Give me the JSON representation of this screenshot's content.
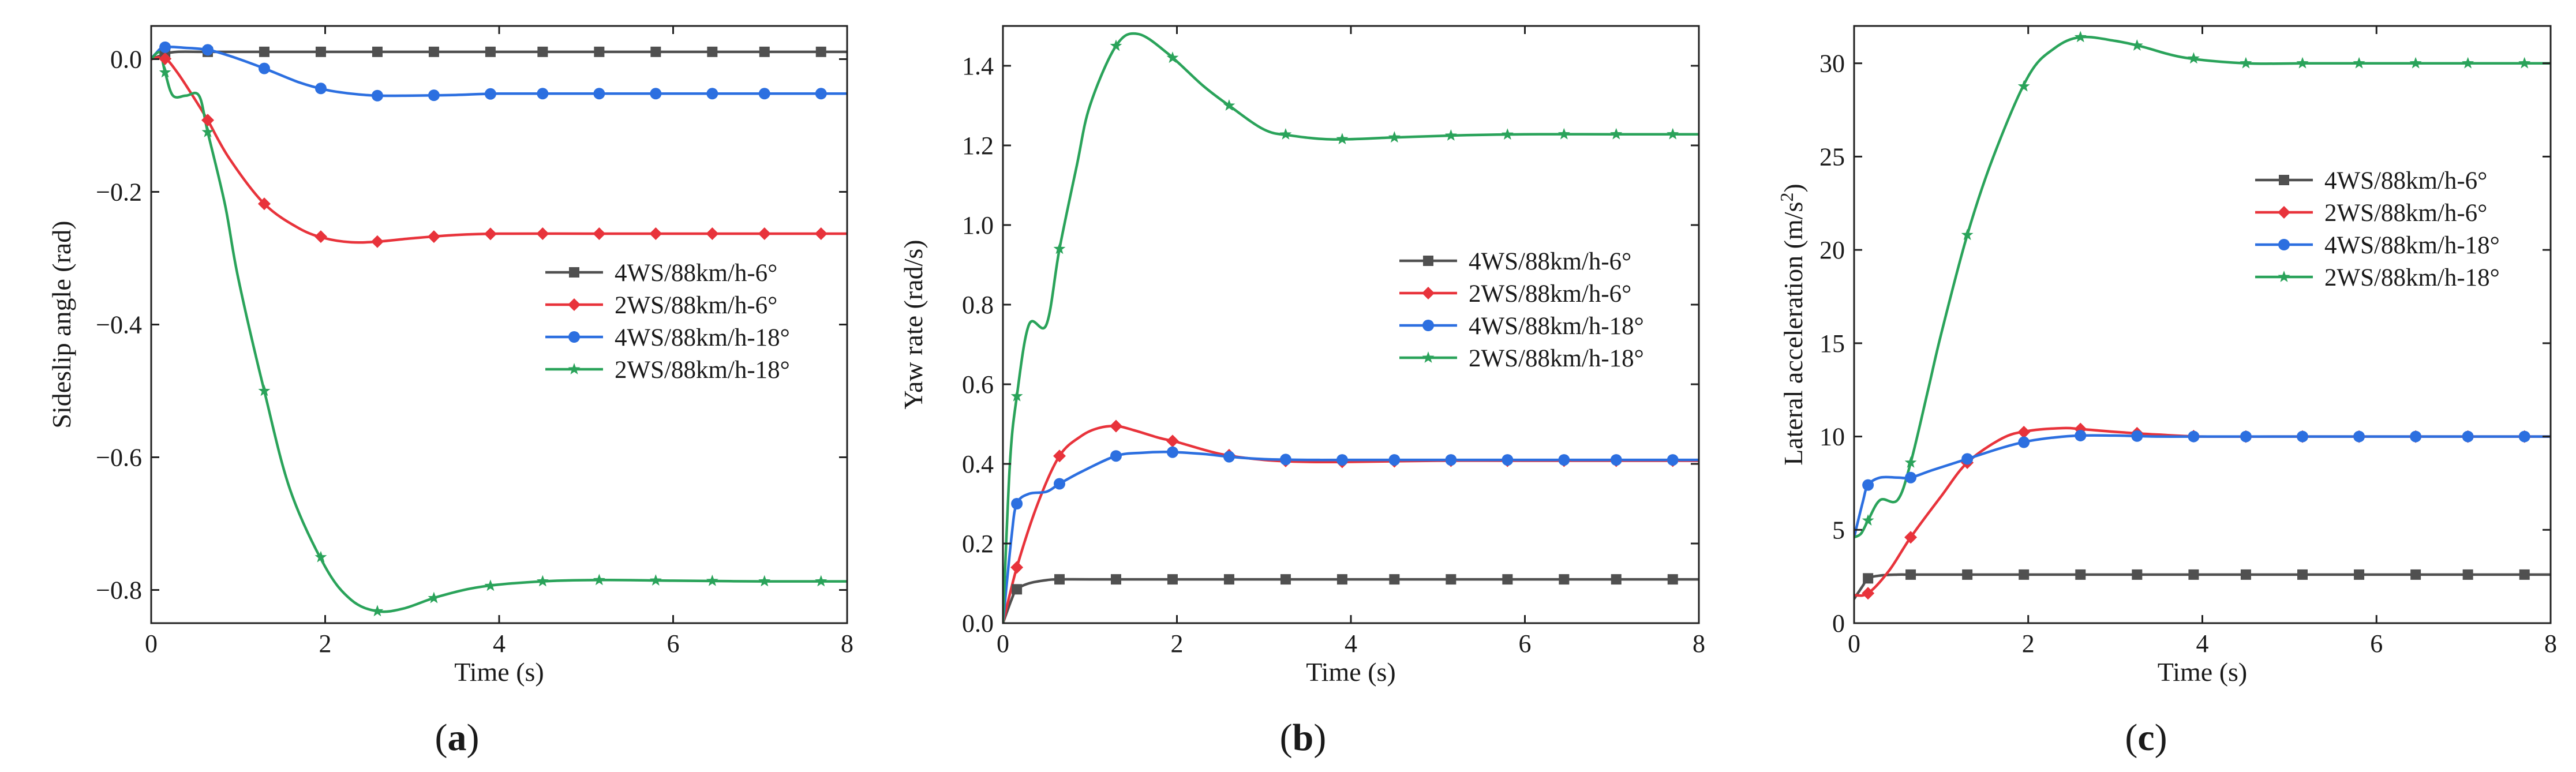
{
  "colors": {
    "4WS/88km/h-6°": "#505050",
    "2WS/88km/h-6°": "#e8333b",
    "4WS/88km/h-18°": "#2c6fe0",
    "2WS/88km/h-18°": "#2aa35a"
  },
  "chart_data": [
    {
      "type": "line",
      "panel_label": "(a)",
      "panel_letter": "a",
      "xlabel": "Time (s)",
      "ylabel": "Sideslip angle (rad)",
      "xlim": [
        0,
        8
      ],
      "ylim": [
        -0.85,
        0.05
      ],
      "xticks": [
        0,
        2,
        4,
        6,
        8
      ],
      "yticks": [
        0.0,
        -0.2,
        -0.4,
        -0.6,
        -0.8
      ],
      "ytick_labels": [
        "0.0",
        "−0.2",
        "−0.4",
        "−0.6",
        "−0.8"
      ],
      "legend_position": "center-right",
      "series": [
        {
          "name": "4WS/88km/h-6°",
          "marker": "square",
          "x": [
            0,
            0.08,
            0.15,
            0.3,
            0.6,
            1.0,
            2.0,
            3.0,
            4.0,
            5.0,
            6.0,
            7.0,
            8.0
          ],
          "y": [
            0,
            0.004,
            0.008,
            0.011,
            0.011,
            0.011,
            0.011,
            0.011,
            0.011,
            0.011,
            0.011,
            0.011,
            0.011
          ]
        },
        {
          "name": "2WS/88km/h-6°",
          "marker": "diamond",
          "x": [
            0,
            0.15,
            0.3,
            0.5,
            0.65,
            0.9,
            1.3,
            1.7,
            2.0,
            2.3,
            2.6,
            3.0,
            3.5,
            4.0,
            5.0,
            6.0,
            7.0,
            8.0
          ],
          "y": [
            0,
            0.002,
            -0.02,
            -0.06,
            -0.092,
            -0.15,
            -0.218,
            -0.255,
            -0.27,
            -0.276,
            -0.275,
            -0.27,
            -0.265,
            -0.263,
            -0.263,
            -0.263,
            -0.263,
            -0.263
          ]
        },
        {
          "name": "4WS/88km/h-18°",
          "marker": "circle",
          "x": [
            0,
            0.05,
            0.15,
            0.4,
            0.65,
            0.9,
            1.3,
            1.7,
            2.0,
            2.3,
            2.6,
            3.0,
            3.5,
            4.0,
            5.0,
            6.0,
            7.0,
            8.0
          ],
          "y": [
            0,
            0.008,
            0.018,
            0.017,
            0.014,
            0.005,
            -0.014,
            -0.035,
            -0.046,
            -0.052,
            -0.055,
            -0.055,
            -0.054,
            -0.052,
            -0.052,
            -0.052,
            -0.052,
            -0.052
          ]
        },
        {
          "name": "2WS/88km/h-18°",
          "marker": "star",
          "x": [
            0,
            0.1,
            0.16,
            0.25,
            0.4,
            0.55,
            0.65,
            0.85,
            1.0,
            1.3,
            1.6,
            2.0,
            2.3,
            2.6,
            2.9,
            3.3,
            3.8,
            4.5,
            5.2,
            6.0,
            7.0,
            8.0
          ],
          "y": [
            0,
            0.01,
            -0.02,
            -0.055,
            -0.055,
            -0.055,
            -0.11,
            -0.22,
            -0.33,
            -0.5,
            -0.65,
            -0.765,
            -0.815,
            -0.832,
            -0.828,
            -0.81,
            -0.795,
            -0.787,
            -0.785,
            -0.786,
            -0.787,
            -0.787
          ]
        }
      ]
    },
    {
      "type": "line",
      "panel_label": "(b)",
      "panel_letter": "b",
      "xlabel": "Time (s)",
      "ylabel": "Yaw rate (rad/s)",
      "xlim": [
        0,
        8
      ],
      "ylim": [
        0,
        1.5
      ],
      "xticks": [
        0,
        2,
        4,
        6,
        8
      ],
      "yticks": [
        0.0,
        0.2,
        0.4,
        0.6,
        0.8,
        1.0,
        1.2,
        1.4
      ],
      "ytick_labels": [
        "0.0",
        "0.2",
        "0.4",
        "0.6",
        "0.8",
        "1.0",
        "1.2",
        "1.4"
      ],
      "legend_position": "center-right",
      "series": [
        {
          "name": "4WS/88km/h-6°",
          "marker": "square",
          "x": [
            0,
            0.1,
            0.16,
            0.3,
            0.5,
            0.65,
            1.0,
            2.0,
            3.0,
            4.0,
            5.0,
            6.0,
            7.0,
            8.0
          ],
          "y": [
            0,
            0.06,
            0.085,
            0.1,
            0.108,
            0.11,
            0.11,
            0.11,
            0.11,
            0.11,
            0.11,
            0.11,
            0.11,
            0.11
          ]
        },
        {
          "name": "2WS/88km/h-6°",
          "marker": "diamond",
          "x": [
            0,
            0.16,
            0.4,
            0.65,
            0.9,
            1.1,
            1.3,
            1.5,
            1.8,
            2.0,
            2.5,
            3.0,
            3.5,
            4.0,
            5.0,
            6.0,
            7.0,
            8.0
          ],
          "y": [
            0,
            0.14,
            0.3,
            0.42,
            0.47,
            0.49,
            0.495,
            0.485,
            0.465,
            0.455,
            0.425,
            0.41,
            0.405,
            0.405,
            0.408,
            0.408,
            0.408,
            0.408
          ]
        },
        {
          "name": "4WS/88km/h-18°",
          "marker": "circle",
          "x": [
            0,
            0.1,
            0.16,
            0.3,
            0.5,
            0.65,
            0.9,
            1.3,
            1.6,
            1.9,
            2.3,
            2.6,
            3.0,
            3.5,
            4.0,
            5.0,
            6.0,
            7.0,
            8.0
          ],
          "y": [
            0,
            0.22,
            0.3,
            0.325,
            0.33,
            0.35,
            0.38,
            0.42,
            0.428,
            0.43,
            0.425,
            0.418,
            0.412,
            0.41,
            0.41,
            0.41,
            0.41,
            0.41,
            0.41
          ]
        },
        {
          "name": "2WS/88km/h-18°",
          "marker": "star",
          "x": [
            0,
            0.08,
            0.16,
            0.3,
            0.5,
            0.65,
            0.85,
            1.0,
            1.3,
            1.55,
            1.9,
            2.3,
            2.6,
            3.0,
            3.3,
            3.8,
            4.5,
            5.2,
            6.0,
            7.0,
            8.0
          ],
          "y": [
            0,
            0.4,
            0.57,
            0.75,
            0.75,
            0.94,
            1.15,
            1.3,
            1.45,
            1.48,
            1.43,
            1.35,
            1.3,
            1.24,
            1.225,
            1.215,
            1.22,
            1.225,
            1.228,
            1.228,
            1.228
          ]
        }
      ]
    },
    {
      "type": "line",
      "panel_label": "(c)",
      "panel_letter": "c",
      "xlabel": "Time (s)",
      "ylabel": "Lateral acceleration (m/s",
      "ylabel_sup": "2",
      "ylabel_end": ")",
      "xlim": [
        0,
        8
      ],
      "ylim": [
        0,
        32
      ],
      "xticks": [
        0,
        2,
        4,
        6,
        8
      ],
      "yticks": [
        0,
        5,
        10,
        15,
        20,
        25,
        30
      ],
      "ytick_labels": [
        "0",
        "5",
        "10",
        "15",
        "20",
        "25",
        "30"
      ],
      "legend_position": "top-right",
      "series": [
        {
          "name": "4WS/88km/h-6°",
          "marker": "square",
          "x": [
            0,
            0.1,
            0.16,
            0.3,
            0.5,
            0.65,
            1.0,
            2.0,
            3.0,
            4.0,
            5.0,
            6.0,
            7.0,
            8.0
          ],
          "y": [
            1.3,
            2.0,
            2.4,
            2.55,
            2.6,
            2.6,
            2.6,
            2.6,
            2.6,
            2.6,
            2.6,
            2.6,
            2.6,
            2.6
          ]
        },
        {
          "name": "2WS/88km/h-6°",
          "marker": "diamond",
          "x": [
            0,
            0.16,
            0.4,
            0.65,
            1.0,
            1.3,
            1.7,
            2.0,
            2.4,
            2.6,
            3.0,
            3.5,
            4.0,
            5.0,
            6.0,
            7.0,
            8.0
          ],
          "y": [
            1.5,
            1.6,
            2.8,
            4.6,
            6.8,
            8.6,
            9.9,
            10.3,
            10.45,
            10.4,
            10.25,
            10.1,
            10.0,
            10.0,
            10.0,
            10.0,
            10.0
          ]
        },
        {
          "name": "4WS/88km/h-18°",
          "marker": "circle",
          "x": [
            0,
            0.1,
            0.16,
            0.3,
            0.5,
            0.65,
            0.9,
            1.3,
            1.7,
            2.0,
            2.3,
            2.6,
            3.0,
            3.5,
            4.0,
            5.0,
            6.0,
            7.0,
            8.0
          ],
          "y": [
            4.6,
            6.5,
            7.4,
            7.8,
            7.8,
            7.8,
            8.2,
            8.8,
            9.4,
            9.75,
            9.95,
            10.05,
            10.05,
            10.0,
            10.0,
            10.0,
            10.0,
            10.0,
            10.0
          ]
        },
        {
          "name": "2WS/88km/h-18°",
          "marker": "star",
          "x": [
            0,
            0.08,
            0.16,
            0.3,
            0.5,
            0.65,
            0.85,
            1.0,
            1.3,
            1.6,
            2.0,
            2.3,
            2.6,
            3.0,
            3.3,
            3.8,
            4.5,
            5.2,
            6.0,
            7.0,
            8.0
          ],
          "y": [
            4.6,
            4.8,
            5.5,
            6.6,
            6.6,
            8.6,
            12.5,
            15.5,
            20.8,
            25.0,
            29.3,
            30.8,
            31.4,
            31.2,
            30.9,
            30.3,
            30.0,
            30.0,
            30.0,
            30.0,
            30.0
          ]
        }
      ]
    }
  ]
}
